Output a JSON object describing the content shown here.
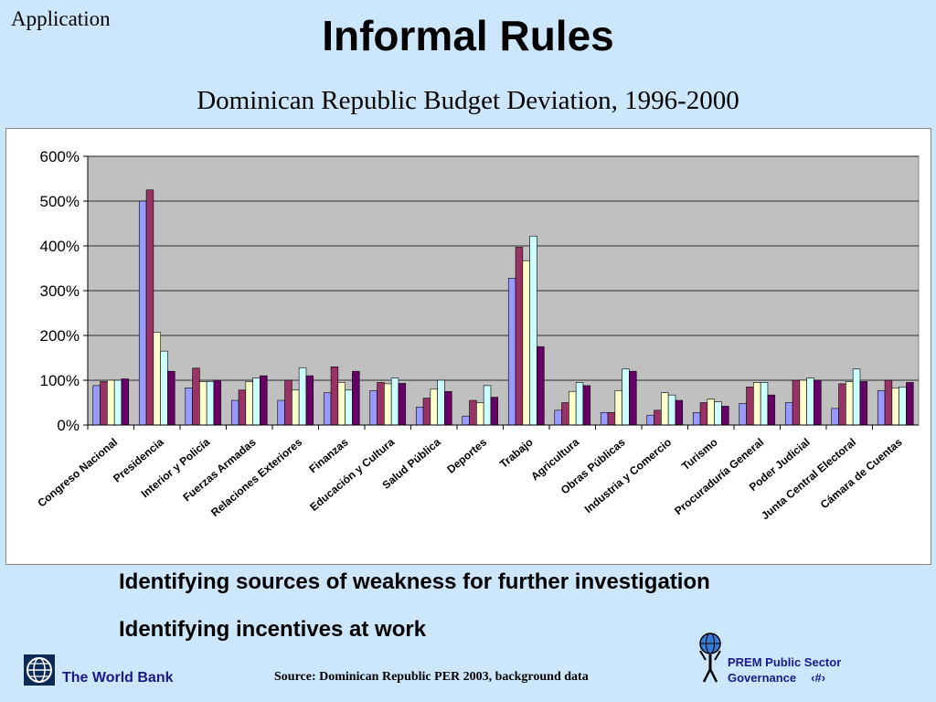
{
  "header": {
    "section": "Application",
    "title": "Informal Rules",
    "subtitle": "Dominican Republic Budget Deviation, 1996-2000"
  },
  "bullets": [
    "Identifying sources of weakness for further investigation",
    "Identifying incentives at work"
  ],
  "footer": {
    "org": "The World Bank",
    "source": "Source: Dominican Republic PER 2003, background data",
    "prem_line1": "PREM Public Sector",
    "prem_line2": "Governance",
    "page": "‹#›"
  },
  "chart_data": {
    "type": "bar",
    "ylim": [
      0,
      600
    ],
    "yticks": [
      0,
      100,
      200,
      300,
      400,
      500,
      600
    ],
    "ytick_labels": [
      "0%",
      "100%",
      "200%",
      "300%",
      "400%",
      "500%",
      "600%"
    ],
    "grid": true,
    "legend": "none",
    "plot_background": "#c0c0c0",
    "series_colors": [
      "#9999ff",
      "#993366",
      "#ffffcc",
      "#ccffff",
      "#660066"
    ],
    "categories": [
      "Congreso Nacional",
      "Presidencia",
      "Interior y Policía",
      "Fuerzas Armadas",
      "Relaciones Exteriores",
      "Finanzas",
      "Educación y Cultura",
      "Salud Pública",
      "Deportes",
      "Trabajo",
      "Agricultura",
      "Obras Públicas",
      "Industria y Comercio",
      "Turismo",
      "Procuraduría General",
      "Poder Judicial",
      "Junta Central Electoral",
      "Cámara de Cuentas"
    ],
    "series": [
      {
        "values": [
          88,
          500,
          83,
          55,
          55,
          72,
          77,
          40,
          20,
          328,
          33,
          28,
          22,
          28,
          48,
          50,
          37,
          77
        ]
      },
      {
        "values": [
          97,
          525,
          127,
          78,
          100,
          130,
          95,
          60,
          55,
          397,
          50,
          28,
          33,
          50,
          85,
          100,
          92,
          100
        ]
      },
      {
        "values": [
          100,
          207,
          97,
          97,
          78,
          95,
          92,
          80,
          50,
          367,
          75,
          77,
          72,
          58,
          95,
          100,
          97,
          83
        ]
      },
      {
        "values": [
          100,
          165,
          97,
          105,
          128,
          78,
          105,
          100,
          88,
          422,
          95,
          125,
          67,
          52,
          95,
          105,
          125,
          85
        ]
      },
      {
        "values": [
          103,
          120,
          100,
          110,
          110,
          120,
          93,
          75,
          62,
          175,
          88,
          120,
          55,
          42,
          67,
          100,
          97,
          95
        ]
      }
    ]
  }
}
